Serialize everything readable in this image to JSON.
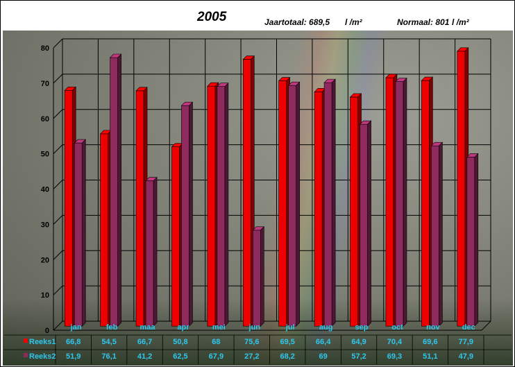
{
  "header": {
    "title": "2005",
    "jaartotaal_label": "Jaartotaal: 689,5",
    "jaartotaal_unit": "l /m²",
    "normaal_label": "Normaal: 801",
    "normaal_unit": "l /m²"
  },
  "chart_data": {
    "type": "bar",
    "title": "2005",
    "categories": [
      "jan",
      "feb",
      "maa",
      "apr",
      "mei",
      "jun",
      "jul",
      "aug",
      "sep",
      "oct",
      "nov",
      "dec"
    ],
    "ylim": [
      0,
      80
    ],
    "yticks": [
      0,
      10,
      20,
      30,
      40,
      50,
      60,
      70,
      80
    ],
    "grid": true,
    "legend": "table-bottom",
    "series": [
      {
        "name": "Reeks1",
        "color": "#ee0000",
        "values": [
          66.8,
          54.5,
          66.7,
          50.8,
          68,
          75.6,
          69.5,
          66.4,
          64.9,
          70.4,
          69.6,
          77.9
        ],
        "labels": [
          "66,8",
          "54,5",
          "66,7",
          "50,8",
          "68",
          "75,6",
          "69,5",
          "66,4",
          "64,9",
          "70,4",
          "69,6",
          "77,9"
        ]
      },
      {
        "name": "Reeks2",
        "color": "#8e2a5e",
        "values": [
          51.9,
          76.1,
          41.2,
          62.5,
          67.9,
          27.2,
          68.2,
          69,
          57.2,
          69.3,
          51.1,
          47.9
        ],
        "labels": [
          "51,9",
          "76,1",
          "41,2",
          "62,5",
          "67,9",
          "27,2",
          "68,2",
          "69",
          "57,2",
          "69,3",
          "51,1",
          "47,9"
        ]
      }
    ]
  }
}
